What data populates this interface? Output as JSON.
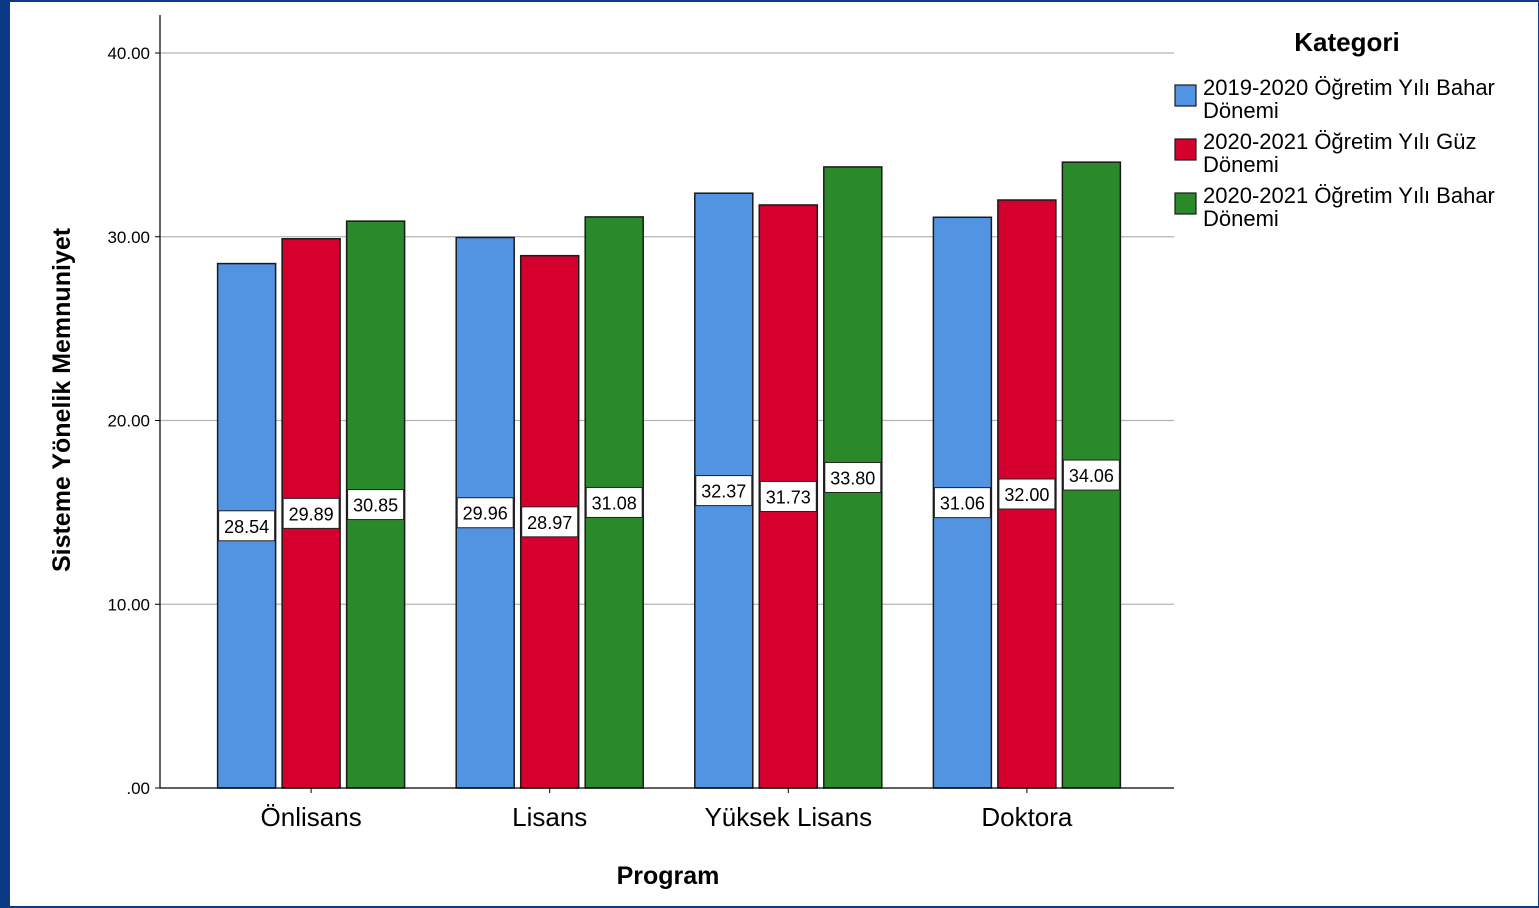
{
  "chart_data": {
    "type": "bar",
    "ylabel": "Sisteme Yönelik Memnuniyet",
    "xlabel": "Program",
    "categories": [
      "Önlisans",
      "Lisans",
      "Yüksek Lisans",
      "Doktora"
    ],
    "ylim": [
      0,
      40
    ],
    "yticks": [
      0,
      10,
      20,
      30,
      40
    ],
    "ytick_labels": [
      ".00",
      "10.00",
      "20.00",
      "30.00",
      "40.00"
    ],
    "grid": true,
    "legend": {
      "title": "Kategori",
      "placement": "right",
      "entries": [
        [
          "2019-2020 Öğretim Yılı Bahar",
          "Dönemi"
        ],
        [
          "2020-2021 Öğretim Yılı Güz",
          "Dönemi"
        ],
        [
          "2020-2021 Öğretim Yılı Bahar",
          "Dönemi"
        ]
      ]
    },
    "series": [
      {
        "name": "2019-2020 Öğretim Yılı Bahar Dönemi",
        "color": "#5294e2",
        "values": [
          28.54,
          29.96,
          32.37,
          31.06
        ],
        "labels": [
          "28.54",
          "29.96",
          "32.37",
          "31.06"
        ]
      },
      {
        "name": "2020-2021 Öğretim Yılı Güz Dönemi",
        "color": "#d5002e",
        "values": [
          29.89,
          28.97,
          31.73,
          32.0
        ],
        "labels": [
          "29.89",
          "28.97",
          "31.73",
          "32.00"
        ]
      },
      {
        "name": "2020-2021 Öğretim Yılı Bahar Dönemi",
        "color": "#2a8a2a",
        "values": [
          30.85,
          31.08,
          33.8,
          34.06
        ],
        "labels": [
          "30.85",
          "31.08",
          "33.80",
          "34.06"
        ]
      }
    ]
  }
}
